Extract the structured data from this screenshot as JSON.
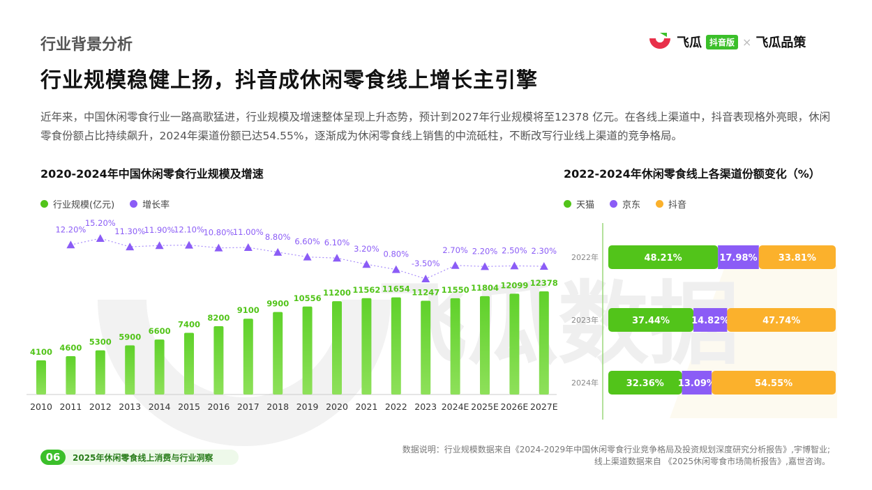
{
  "header": {
    "section": "行业背景分析",
    "headline": "行业规模稳健上扬，抖音成休闲零食线上增长主引擎",
    "intro": "近年来，中国休闲零食行业一路高歌猛进，行业规模及增速整体呈现上升态势，预计到2027年行业规模将至12378  亿元。在各线上渠道中，抖音表现格外亮眼，休闲零食份额占比持续飙升，2024年渠道份额已达54.55%，逐渐成为休闲零食线上销售的中流砥柱，不断改写行业线上渠道的竞争格局。"
  },
  "brand": {
    "name1": "飞瓜",
    "badge": "抖音版",
    "sep": "×",
    "name2": "飞瓜品策",
    "watermark": "飞瓜数据"
  },
  "colors": {
    "green": "#52c41a",
    "purple": "#8b5cf6",
    "orange": "#fbb12c",
    "brand_red": "#e8304a"
  },
  "chart_data": [
    {
      "type": "bar",
      "title": "2020-2024年中国休闲零食行业规模及增速",
      "categories": [
        "2010",
        "2011",
        "2012",
        "2013",
        "2014",
        "2015",
        "2016",
        "2017",
        "2018",
        "2019",
        "2020",
        "2021",
        "2022",
        "2023",
        "2024E",
        "2025E",
        "2026E",
        "2027E"
      ],
      "series": [
        {
          "name": "行业规模(亿元)",
          "kind": "bar",
          "color": "#52c41a",
          "values": [
            4100,
            4600,
            5300,
            5900,
            6600,
            7400,
            8200,
            9100,
            9900,
            10556,
            11200,
            11562,
            11654,
            11247,
            11550,
            11804,
            12099,
            12378
          ]
        },
        {
          "name": "增长率",
          "kind": "line",
          "color": "#8b5cf6",
          "values": [
            null,
            12.2,
            15.2,
            11.3,
            11.9,
            12.1,
            10.8,
            11.0,
            8.8,
            6.6,
            6.1,
            3.2,
            0.8,
            -3.5,
            2.7,
            2.2,
            2.5,
            2.3
          ],
          "labels": [
            "",
            "12.20%",
            "15.20%",
            "11.30%",
            "11.90%",
            "12.10%",
            "10.80%",
            "11.00%",
            "8.80%",
            "6.60%",
            "6.10%",
            "3.20%",
            "0.80%",
            "-3.50%",
            "2.70%",
            "2.20%",
            "2.50%",
            "2.30%"
          ]
        }
      ]
    },
    {
      "type": "bar",
      "stacked": true,
      "orientation": "horizontal",
      "title": "2022-2024年休闲零食线上各渠道份额变化（%）",
      "categories": [
        "2022年",
        "2023年",
        "2024年"
      ],
      "series": [
        {
          "name": "天猫",
          "color": "#52c41a",
          "values": [
            48.21,
            37.44,
            32.36
          ],
          "labels": [
            "48.21%",
            "37.44%",
            "32.36%"
          ]
        },
        {
          "name": "京东",
          "color": "#8b5cf6",
          "values": [
            17.98,
            14.82,
            13.09
          ],
          "labels": [
            "17.98%",
            "14.82%",
            "13.09%"
          ]
        },
        {
          "name": "抖音",
          "color": "#fbb12c",
          "values": [
            33.81,
            47.74,
            54.55
          ],
          "labels": [
            "33.81%",
            "47.74%",
            "54.55%"
          ]
        }
      ]
    }
  ],
  "footer": {
    "page": "06",
    "report": "2025年休闲零食线上消费与行业洞察",
    "source_line1": "数据说明：行业规模数据来自《2024-2029年中国休闲零食行业竞争格局及投资规划深度研究分析报告》,宇博智业;",
    "source_line2": "线上渠道数据来自 《2025休闲零食市场简析报告》,嘉世咨询。"
  }
}
